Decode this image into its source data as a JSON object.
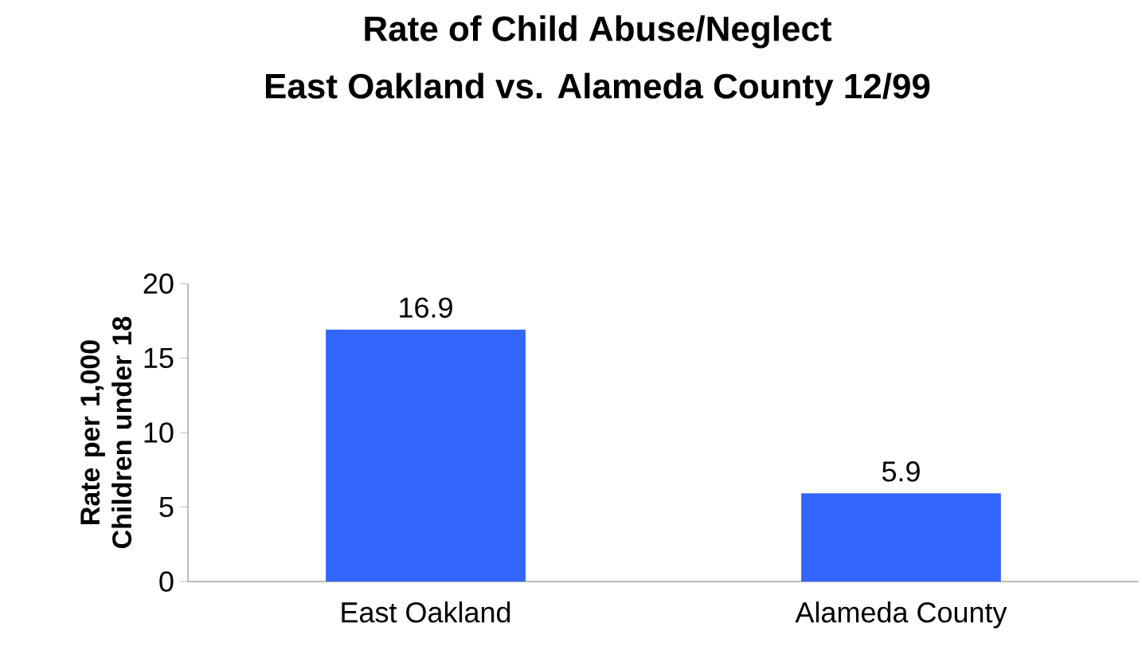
{
  "chart_data": {
    "type": "bar",
    "title": "Rate of Child Abuse/Neglect",
    "subtitle": "East Oakland vs. Alameda County 12/99",
    "ylabel": "Rate per 1,000 Children under 18",
    "categories": [
      "East Oakland",
      "Alameda County"
    ],
    "values": [
      16.9,
      5.9
    ],
    "color": "#3366ff",
    "ylim": [
      0,
      20
    ],
    "yticks": [
      0,
      5,
      10,
      15,
      20
    ],
    "data_labels": true
  }
}
